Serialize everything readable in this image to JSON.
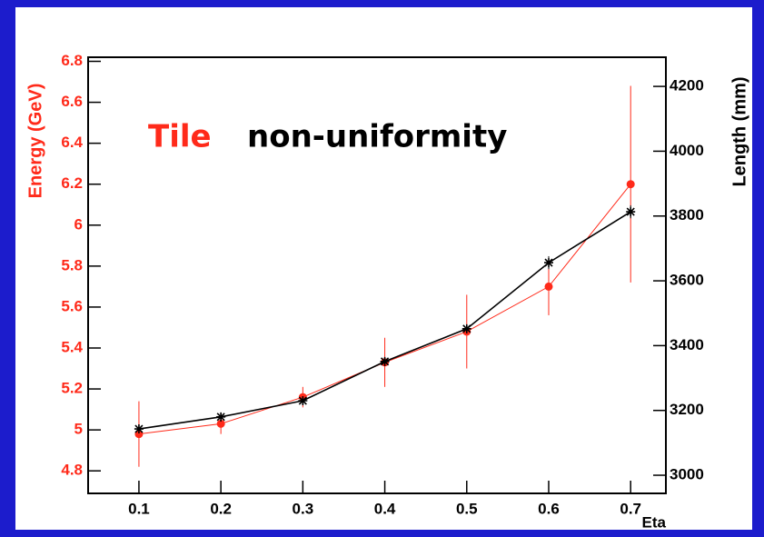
{
  "chart_data": {
    "type": "line",
    "title_highlight": "Tile",
    "title": "non-uniformity",
    "y_label": "Energy (GeV)",
    "y2_label": "Length (mm)",
    "x_label": "Eta",
    "x": [
      0.1,
      0.2,
      0.3,
      0.4,
      0.5,
      0.6,
      0.7
    ],
    "xlim": [
      0.038,
      0.743
    ],
    "xticks": [
      0.1,
      0.2,
      0.3,
      0.4,
      0.5,
      0.6,
      0.7
    ],
    "ylim": [
      4.69,
      6.82
    ],
    "yticks": [
      4.8,
      5,
      5.2,
      5.4,
      5.6,
      5.8,
      6,
      6.2,
      6.4,
      6.6,
      6.8
    ],
    "y2lim": [
      2944,
      4290
    ],
    "y2ticks": [
      3000,
      3200,
      3400,
      3600,
      3800,
      4000,
      4200
    ],
    "series": [
      {
        "name": "Energy",
        "color": "#ff2a1a",
        "values": [
          4.98,
          5.03,
          5.16,
          5.33,
          5.48,
          5.7,
          6.2
        ],
        "errors": [
          0.16,
          0.05,
          0.05,
          0.12,
          0.18,
          0.14,
          0.48
        ]
      },
      {
        "name": "Length",
        "color": "#000000",
        "axis": "y2",
        "values": [
          3143,
          3180,
          3230,
          3351,
          3452,
          3656,
          3813
        ],
        "errors": [
          5,
          5,
          5,
          5,
          5,
          20,
          20
        ]
      }
    ]
  }
}
